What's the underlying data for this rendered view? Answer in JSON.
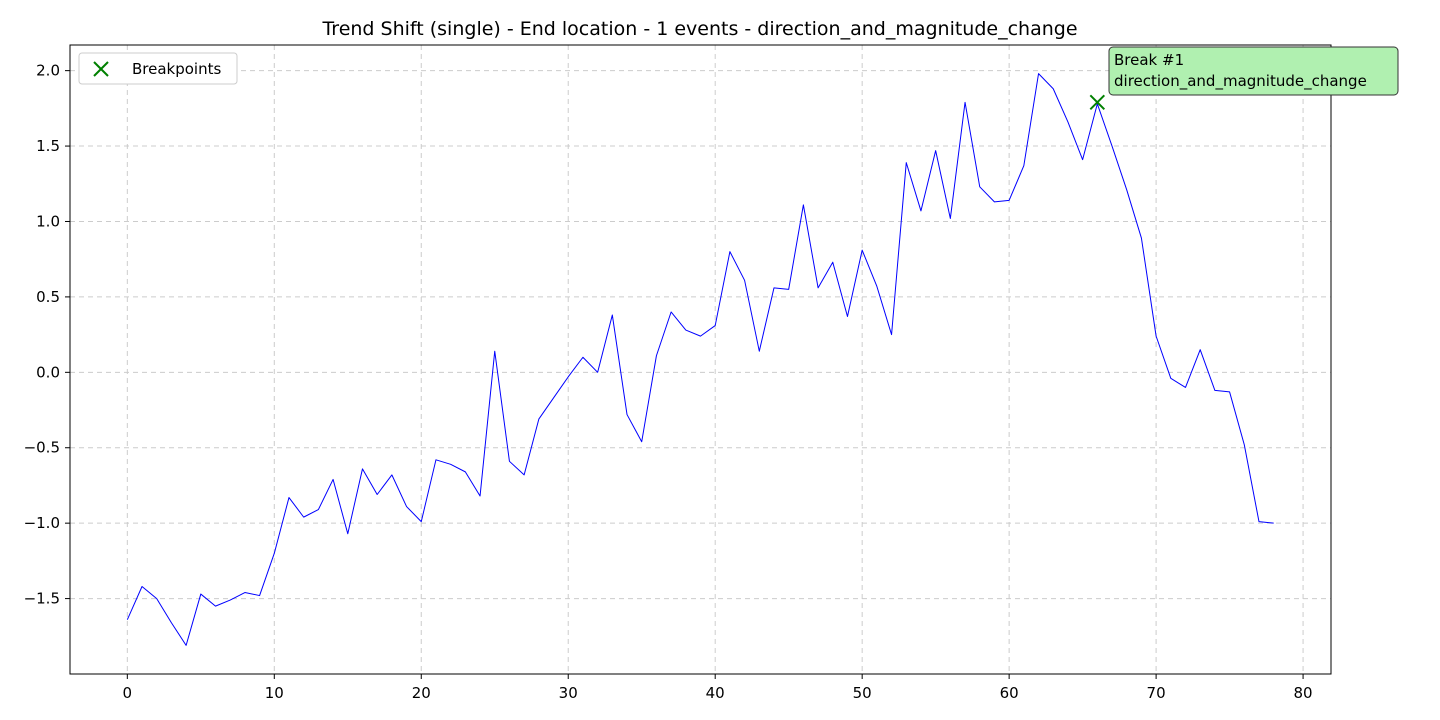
{
  "chart_data": {
    "type": "line",
    "title": "Trend Shift (single) - End location - 1 events - direction_and_magnitude_change",
    "xlabel": "",
    "ylabel": "",
    "xlim": [
      -3.9,
      81.9
    ],
    "ylim": [
      -2.0,
      2.17
    ],
    "xticks": [
      0,
      10,
      20,
      30,
      40,
      50,
      60,
      70,
      80
    ],
    "yticks": [
      -1.5,
      -1.0,
      -0.5,
      0.0,
      0.5,
      1.0,
      1.5,
      2.0
    ],
    "ytick_labels": [
      "−1.5",
      "−1.0",
      "−0.5",
      "0.0",
      "0.5",
      "1.0",
      "1.5",
      "2.0"
    ],
    "grid": true,
    "legend_position": "top-left",
    "line_color": "#0000ff",
    "marker_color": "#008000",
    "annotation_bg": "#b0f0b0",
    "series": [
      {
        "x": [
          0,
          1,
          2,
          3,
          4,
          5,
          6,
          7,
          8,
          9,
          10,
          11,
          12,
          13,
          14,
          15,
          16,
          17,
          18,
          19,
          20,
          21,
          22,
          23,
          24,
          25,
          26,
          27,
          28,
          29,
          30,
          31,
          32,
          33,
          34,
          35,
          36,
          37,
          38,
          39,
          40,
          41,
          42,
          43,
          44,
          45,
          46,
          47,
          48,
          49,
          50,
          51,
          52,
          53,
          54,
          55,
          56,
          57,
          58,
          59,
          60,
          61,
          62,
          63,
          64,
          65,
          66,
          67,
          68,
          69,
          70,
          71,
          72,
          73,
          74,
          75,
          76,
          77,
          78
        ],
        "y": [
          -1.64,
          -1.42,
          -1.5,
          -1.66,
          -1.81,
          -1.47,
          -1.55,
          -1.51,
          -1.46,
          -1.48,
          -1.2,
          -0.83,
          -0.96,
          -0.91,
          -0.71,
          -1.07,
          -0.64,
          -0.81,
          -0.68,
          -0.89,
          -0.99,
          -0.58,
          -0.61,
          -0.66,
          -0.82,
          0.14,
          -0.59,
          -0.68,
          -0.31,
          -0.17,
          -0.03,
          0.1,
          0.0,
          0.38,
          -0.28,
          -0.46,
          0.11,
          0.4,
          0.28,
          0.24,
          0.31,
          0.8,
          0.61,
          0.14,
          0.56,
          0.55,
          1.11,
          0.56,
          0.73,
          0.37,
          0.81,
          0.57,
          0.25,
          1.39,
          1.07,
          1.47,
          1.02,
          1.79,
          1.23,
          1.13,
          1.14,
          1.37,
          1.98,
          1.88,
          1.66,
          1.41,
          1.78,
          1.5,
          1.21,
          0.89,
          0.24,
          -0.04,
          -0.1,
          0.15,
          -0.12,
          -0.13,
          -0.48,
          -0.99,
          -1.0
        ]
      }
    ],
    "breakpoints": [
      {
        "x": 66,
        "y": 1.79
      }
    ],
    "legend": {
      "label": "Breakpoints"
    },
    "annotations": [
      {
        "x": 66,
        "y": 1.79,
        "line1": "Break #1",
        "line2": "direction_and_magnitude_change"
      }
    ]
  }
}
